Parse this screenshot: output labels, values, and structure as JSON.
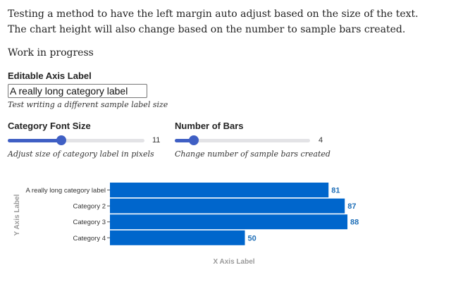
{
  "intro": {
    "lines": [
      "Testing a method to have the left margin auto adjust based on the size of the text.",
      "The chart height will also change based on the number to sample bars created."
    ],
    "status": "Work in progress"
  },
  "axis_label_control": {
    "label": "Editable Axis Label",
    "value": "A really long category label",
    "help": "Test writing a different sample label size"
  },
  "font_size_control": {
    "label": "Category Font Size",
    "value": 11,
    "help": "Adjust size of category label in pixels"
  },
  "bars_control": {
    "label": "Number of Bars",
    "value": 4,
    "help": "Change number of sample bars created"
  },
  "chart_data": {
    "type": "bar",
    "orientation": "horizontal",
    "x_label": "X Axis Label",
    "y_label": "Y Axis Label",
    "categories": [
      "A really long category label",
      "Category 2",
      "Category 3",
      "Category 4"
    ],
    "values": [
      81,
      87,
      88,
      50
    ],
    "color": "#0066cc",
    "label_color": "#1f6fb8",
    "xlim": [
      0,
      100
    ]
  }
}
